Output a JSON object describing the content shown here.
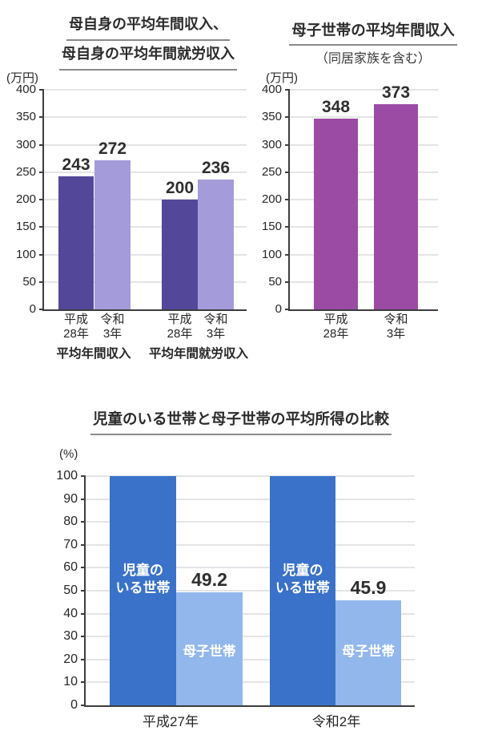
{
  "page": {
    "background": "#ffffff",
    "text_color": "#2b2b2b"
  },
  "chart_data": [
    {
      "type": "bar",
      "title_lines": [
        "母自身の平均年間収入、",
        "母自身の平均年間就労収入"
      ],
      "subtitle": "",
      "unit": "(万円)",
      "ylabel": "万円",
      "ylim": [
        0,
        400
      ],
      "ytick_step": 50,
      "grid": true,
      "legend": "none",
      "colors": {
        "dark": "#53479a",
        "light": "#a49bdb"
      },
      "groups": [
        {
          "label": "平均年間収入",
          "bars": [
            {
              "category_lines": [
                "平成",
                "28年"
              ],
              "value": 243,
              "color_key": "dark"
            },
            {
              "category_lines": [
                "令和",
                "3年"
              ],
              "value": 272,
              "color_key": "light"
            }
          ]
        },
        {
          "label": "平均年間就労収入",
          "bars": [
            {
              "category_lines": [
                "平成",
                "28年"
              ],
              "value": 200,
              "color_key": "dark"
            },
            {
              "category_lines": [
                "令和",
                "3年"
              ],
              "value": 236,
              "color_key": "light"
            }
          ]
        }
      ]
    },
    {
      "type": "bar",
      "title_lines": [
        "母子世帯の平均年間収入"
      ],
      "subtitle": "（同居家族を含む）",
      "unit": "(万円)",
      "ylabel": "万円",
      "ylim": [
        0,
        400
      ],
      "ytick_step": 50,
      "grid": true,
      "legend": "none",
      "colors": {
        "purple": "#9c4ba4"
      },
      "groups": [
        {
          "label": "",
          "bars": [
            {
              "category_lines": [
                "平成",
                "28年"
              ],
              "value": 348,
              "color_key": "purple"
            },
            {
              "category_lines": [
                "令和",
                "3年"
              ],
              "value": 373,
              "color_key": "purple"
            }
          ]
        }
      ]
    },
    {
      "type": "bar",
      "title_lines": [
        "児童のいる世帯と母子世帯の平均所得の比較"
      ],
      "subtitle": "",
      "unit": "(%)",
      "ylabel": "%",
      "ylim": [
        0,
        100
      ],
      "ytick_step": 10,
      "grid": true,
      "legend": "none",
      "colors": {
        "darkblue": "#3a72c9",
        "lightblue": "#92b7ec"
      },
      "groups": [
        {
          "label": "平成27年",
          "bars": [
            {
              "inner_label_lines": [
                "児童の",
                "いる世帯"
              ],
              "value": 100,
              "show_value": false,
              "color_key": "darkblue"
            },
            {
              "inner_label_lines": [
                "母子世帯"
              ],
              "value": 49.2,
              "show_value": true,
              "color_key": "lightblue"
            }
          ]
        },
        {
          "label": "令和2年",
          "bars": [
            {
              "inner_label_lines": [
                "児童の",
                "いる世帯"
              ],
              "value": 100,
              "show_value": false,
              "color_key": "darkblue"
            },
            {
              "inner_label_lines": [
                "母子世帯"
              ],
              "value": 45.9,
              "show_value": true,
              "color_key": "lightblue"
            }
          ]
        }
      ]
    }
  ]
}
